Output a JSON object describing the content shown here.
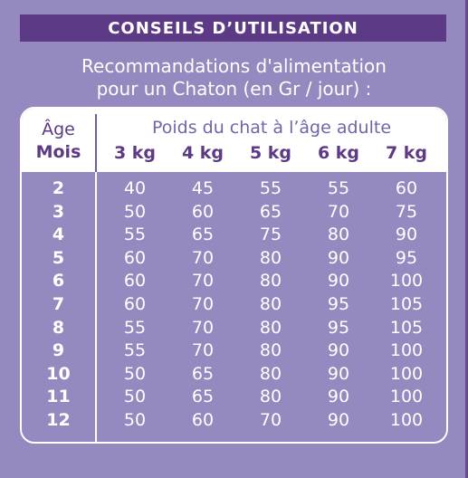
{
  "header": {
    "title": "CONSEILS D’UTILISATION"
  },
  "subtitle": {
    "line1": "Recommandations d'alimentation",
    "line2": "pour un Chaton  (en Gr / jour) :"
  },
  "table": {
    "age_label": "Âge",
    "months_label": "Mois",
    "weights_title": "Poids du chat à l’âge adulte",
    "weights": [
      "3 kg",
      "4 kg",
      "5 kg",
      "6 kg",
      "7 kg"
    ],
    "rows": [
      {
        "age": "2",
        "values": [
          "40",
          "45",
          "55",
          "55",
          "60"
        ]
      },
      {
        "age": "3",
        "values": [
          "50",
          "60",
          "65",
          "70",
          "75"
        ]
      },
      {
        "age": "4",
        "values": [
          "55",
          "65",
          "75",
          "80",
          "90"
        ]
      },
      {
        "age": "5",
        "values": [
          "60",
          "70",
          "80",
          "90",
          "95"
        ]
      },
      {
        "age": "6",
        "values": [
          "60",
          "70",
          "80",
          "90",
          "100"
        ]
      },
      {
        "age": "7",
        "values": [
          "60",
          "70",
          "80",
          "95",
          "105"
        ]
      },
      {
        "age": "8",
        "values": [
          "55",
          "70",
          "80",
          "95",
          "105"
        ]
      },
      {
        "age": "9",
        "values": [
          "55",
          "70",
          "80",
          "90",
          "100"
        ]
      },
      {
        "age": "10",
        "values": [
          "50",
          "65",
          "80",
          "90",
          "100"
        ]
      },
      {
        "age": "11",
        "values": [
          "50",
          "65",
          "80",
          "90",
          "100"
        ]
      },
      {
        "age": "12",
        "values": [
          "50",
          "60",
          "70",
          "90",
          "100"
        ]
      }
    ]
  },
  "colors": {
    "background": "#9589bf",
    "header_bar": "#5d3a86",
    "header_text": "#ffffff",
    "table_head_bg": "#ffffff",
    "table_head_text": "#5d3a86",
    "table_body_text": "#ffffff"
  }
}
